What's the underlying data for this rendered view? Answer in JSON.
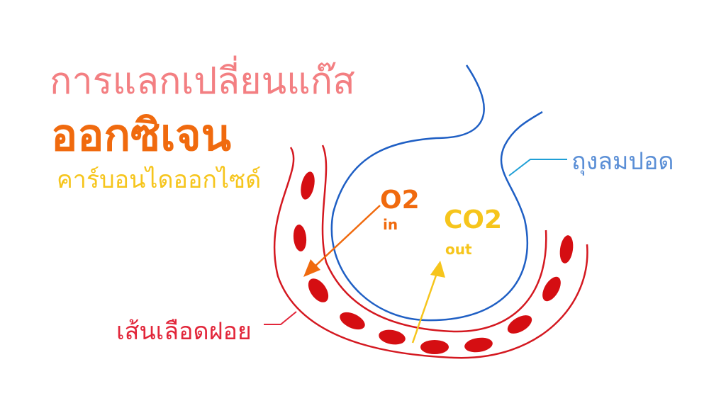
{
  "title": {
    "line1": "การแลกเปลี่ยนแก๊ส",
    "line2": "ออกซิเจน",
    "line3": "คาร์บอนไดออกไซด์"
  },
  "labels": {
    "alveolus": "ถุงลมปอด",
    "capillary": "เส้นเลือดฝอย"
  },
  "gases": {
    "o2": "O2",
    "o2_dir": "in",
    "co2": "CO2",
    "co2_dir": "out"
  },
  "colors": {
    "title1": "#f37f82",
    "oxygen": "#f06a0e",
    "carbon_dioxide": "#f6c51c",
    "alveolus": "#1f5fc4",
    "alveolus_label": "#5b8fd6",
    "capillary": "#d41820",
    "capillary_label": "#e2263a",
    "blood_cell": "#d50e12"
  }
}
